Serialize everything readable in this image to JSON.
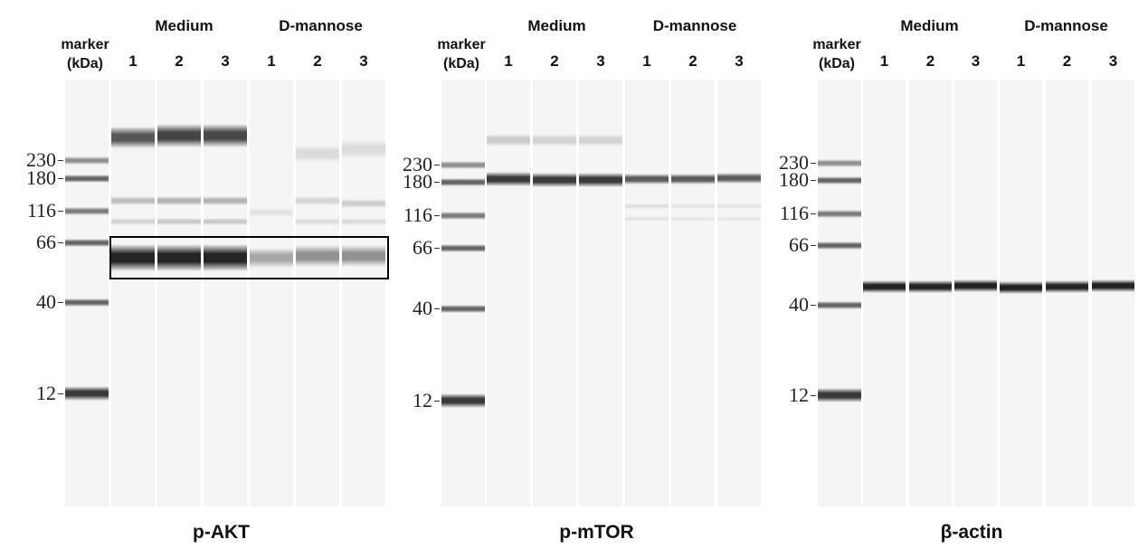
{
  "figure": {
    "panels": [
      {
        "id": "pakt",
        "title": "p-AKT",
        "group_labels": [
          "Medium",
          "D-mannose"
        ],
        "lane_labels": [
          "1",
          "2",
          "3",
          "1",
          "2",
          "3"
        ],
        "marker_header": [
          "marker",
          "(kDa)"
        ],
        "mw_ticks": [
          "230",
          "180",
          "116",
          "66",
          "40",
          "12"
        ],
        "highlight_box": true
      },
      {
        "id": "pmtor",
        "title": "p-mTOR",
        "group_labels": [
          "Medium",
          "D-mannose"
        ],
        "lane_labels": [
          "1",
          "2",
          "3",
          "1",
          "2",
          "3"
        ],
        "marker_header": [
          "marker",
          "(kDa)"
        ],
        "mw_ticks": [
          "230",
          "180",
          "116",
          "66",
          "40",
          "12"
        ],
        "highlight_box": false
      },
      {
        "id": "bactin",
        "title": "β-actin",
        "group_labels": [
          "Medium",
          "D-mannose"
        ],
        "lane_labels": [
          "1",
          "2",
          "3",
          "1",
          "2",
          "3"
        ],
        "marker_header": [
          "marker",
          "(kDa)"
        ],
        "mw_ticks": [
          "230",
          "180",
          "116",
          "66",
          "40",
          "12"
        ],
        "highlight_box": false
      }
    ]
  }
}
